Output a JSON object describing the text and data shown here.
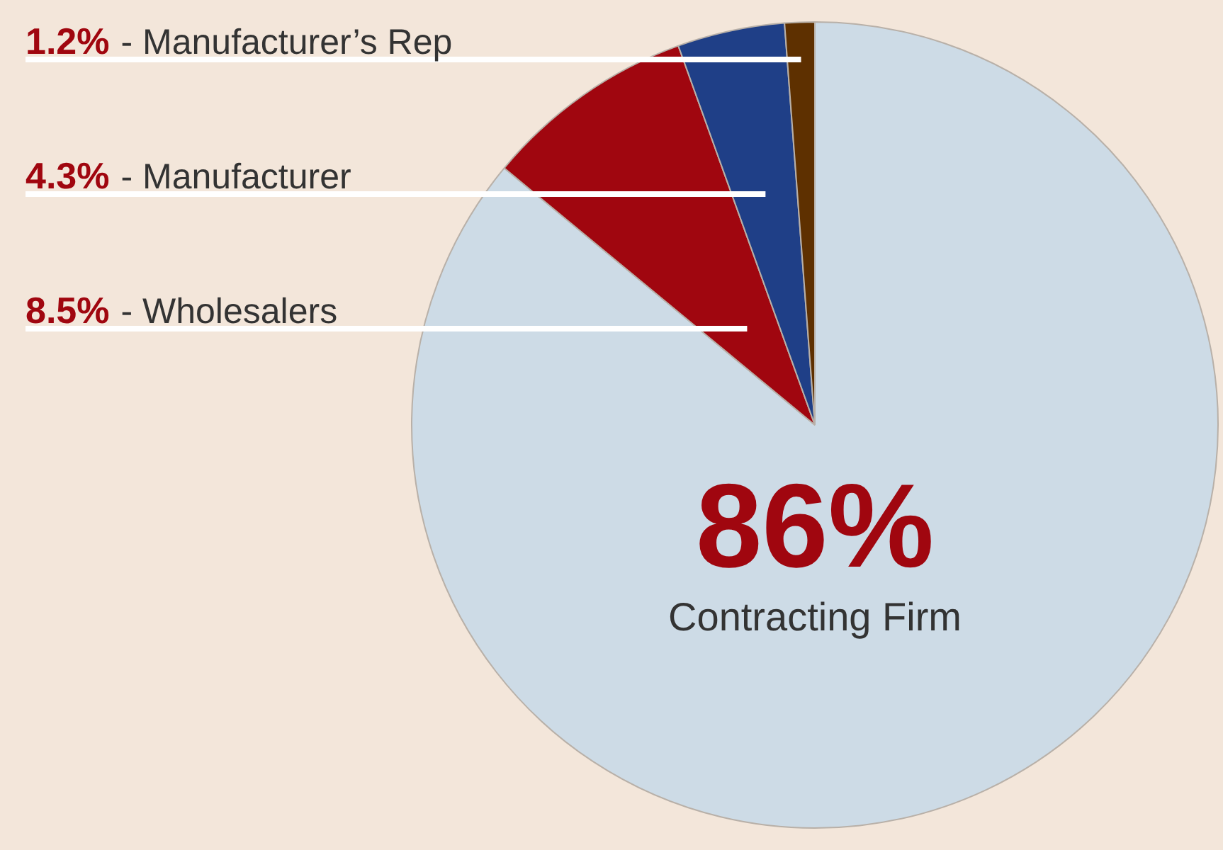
{
  "chart_data": {
    "type": "pie",
    "categories": [
      "Contracting Firm",
      "- Wholesalers",
      "- Manufacturer",
      "- Manufacturer’s Rep"
    ],
    "values": [
      86,
      8.5,
      4.3,
      1.2
    ],
    "colors": [
      "#cddbe6",
      "#a0060f",
      "#1f3f87",
      "#5e3000"
    ],
    "value_labels": [
      "86%",
      "8.5%",
      "4.3%",
      "1.2%"
    ]
  }
}
